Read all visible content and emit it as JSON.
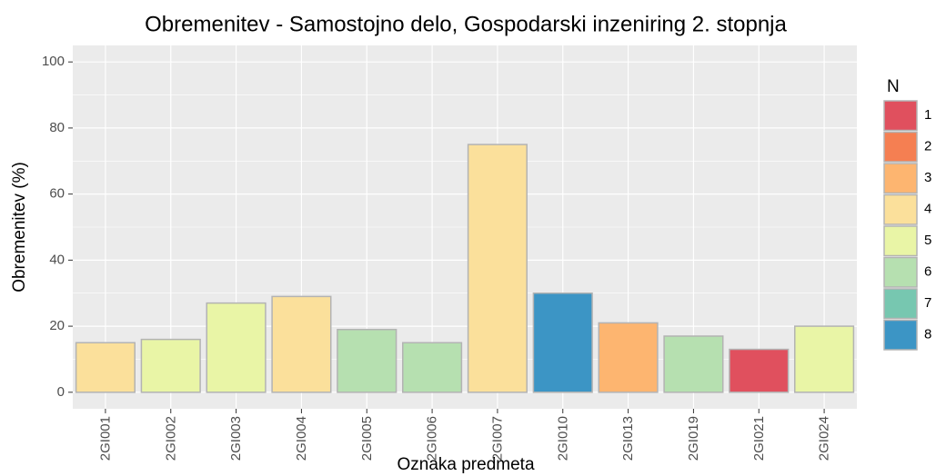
{
  "chart_data": {
    "type": "bar",
    "title": "Obremenitev - Samostojno delo, Gospodarski inzeniring 2. stopnja",
    "x_label": "Oznaka predmeta",
    "y_label": "Obremenitev (%)",
    "categories": [
      "2GI001",
      "2GI002",
      "2GI003",
      "2GI004",
      "2GI005",
      "2GI006",
      "2GI007",
      "2GI010",
      "2GI013",
      "2GI019",
      "2GI021",
      "2GI024"
    ],
    "values": [
      15,
      16,
      27,
      29,
      19,
      15,
      75,
      30,
      21,
      17,
      13,
      20
    ],
    "bar_colors": [
      "#FBE09B",
      "#E9F5A6",
      "#E9F5A6",
      "#FBE09B",
      "#B6E0B0",
      "#B6E0B0",
      "#FBE09B",
      "#3C95C5",
      "#FDB570",
      "#B6E0B0",
      "#E0505E",
      "#E9F5A6"
    ],
    "ylim": [
      -5,
      105
    ],
    "yticks": [
      0,
      20,
      40,
      60,
      80,
      100
    ],
    "grid": true,
    "legend": {
      "title": "N",
      "labels": [
        1,
        2,
        3,
        4,
        5,
        6,
        7,
        8
      ],
      "colors": [
        "#E0505E",
        "#F57F52",
        "#FDB570",
        "#FBE09B",
        "#E9F5A6",
        "#B6E0B0",
        "#77C7B0",
        "#3C95C5"
      ]
    }
  }
}
